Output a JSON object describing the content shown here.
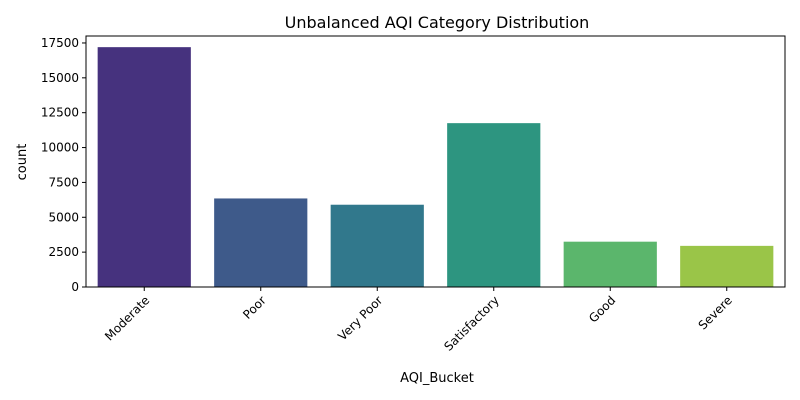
{
  "chart_data": {
    "type": "bar",
    "title": "Unbalanced AQI Category Distribution",
    "xlabel": "AQI_Bucket",
    "ylabel": "count",
    "categories": [
      "Moderate",
      "Poor",
      "Very Poor",
      "Satisfactory",
      "Good",
      "Severe"
    ],
    "values": [
      17200,
      6350,
      5900,
      11750,
      3250,
      2950
    ],
    "colors": [
      "#46327e",
      "#3e5a8a",
      "#31788c",
      "#2d9580",
      "#5bb66c",
      "#9ac548"
    ],
    "ylim": [
      0,
      18000
    ],
    "yticks": [
      0,
      2500,
      5000,
      7500,
      10000,
      12500,
      15000,
      17500
    ],
    "ytick_labels": [
      "0",
      "2500",
      "5000",
      "7500",
      "10000",
      "12500",
      "15000",
      "17500"
    ],
    "grid": false,
    "legend": "none"
  }
}
